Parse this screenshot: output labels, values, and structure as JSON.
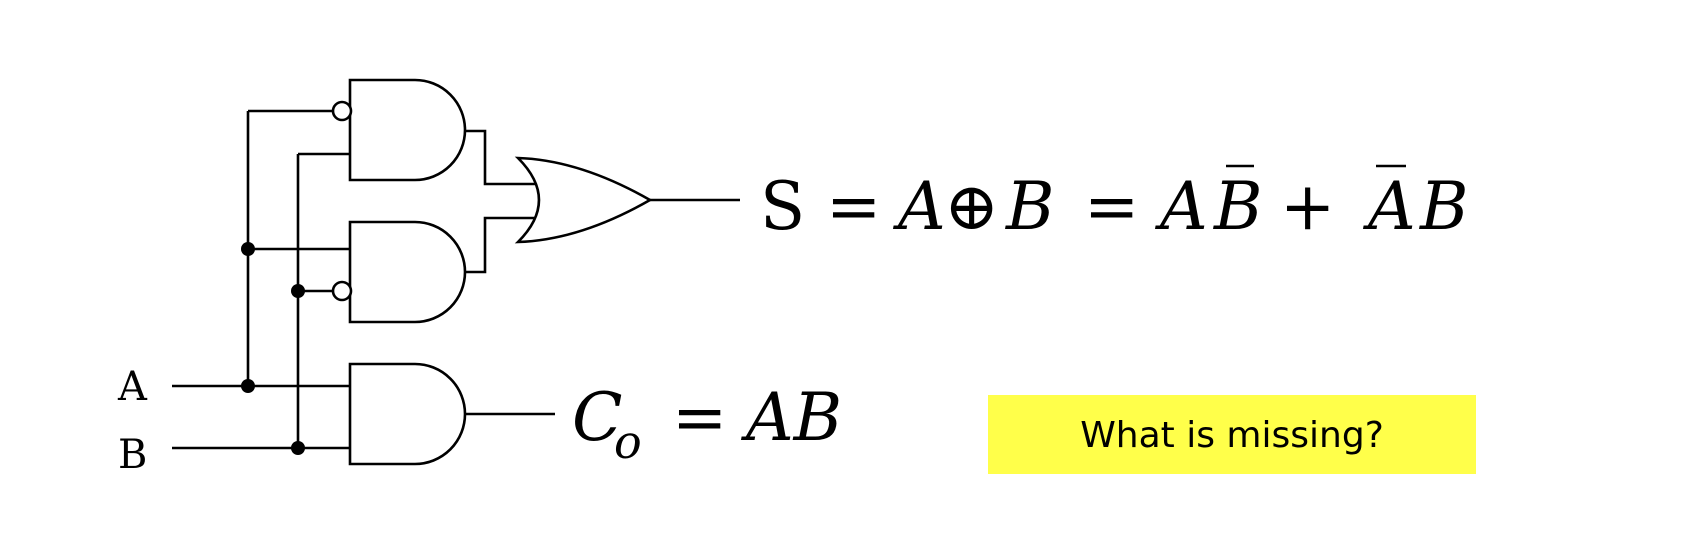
{
  "inputs": {
    "a_label": "A",
    "b_label": "B"
  },
  "sum_equation": {
    "lhs": "S",
    "equals": "=",
    "var_a": "A",
    "xor_symbol": "⊕",
    "var_b": "B",
    "term1_a": "A",
    "term1_b_bar": "B",
    "plus": "+",
    "term2_a_bar": "A",
    "term2_b": "B"
  },
  "carry_equation": {
    "lhs": "C",
    "subscript": "o",
    "equals": "=",
    "rhs": "AB"
  },
  "callout": {
    "text": "What is missing?",
    "background": "#ffff4a"
  }
}
